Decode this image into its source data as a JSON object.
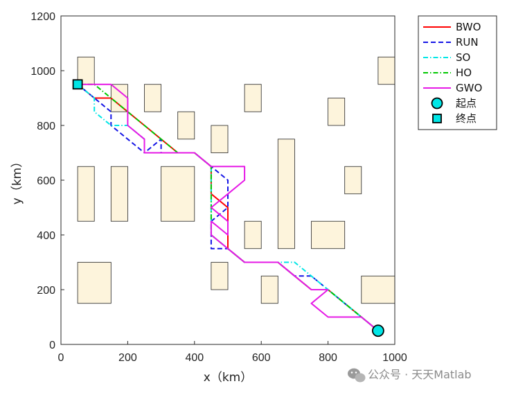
{
  "chart_data": {
    "type": "line",
    "xlabel": "x（km）",
    "ylabel": "y（km）",
    "xlim": [
      0,
      1000
    ],
    "ylim": [
      0,
      1200
    ],
    "xticks": [
      "0",
      "200",
      "400",
      "600",
      "800",
      "1000"
    ],
    "yticks": [
      "0",
      "200",
      "400",
      "600",
      "800",
      "1000",
      "1200"
    ],
    "grid": false,
    "legend_position": "top-right",
    "obstacle_color": "#fdf4dc",
    "obstacles": [
      {
        "x": 50,
        "y": 950,
        "w": 50,
        "h": 100
      },
      {
        "x": 150,
        "y": 850,
        "w": 50,
        "h": 100
      },
      {
        "x": 250,
        "y": 850,
        "w": 50,
        "h": 100
      },
      {
        "x": 350,
        "y": 750,
        "w": 50,
        "h": 100
      },
      {
        "x": 450,
        "y": 700,
        "w": 50,
        "h": 100
      },
      {
        "x": 550,
        "y": 850,
        "w": 50,
        "h": 100
      },
      {
        "x": 800,
        "y": 800,
        "w": 50,
        "h": 100
      },
      {
        "x": 950,
        "y": 950,
        "w": 50,
        "h": 100
      },
      {
        "x": 50,
        "y": 450,
        "w": 50,
        "h": 200
      },
      {
        "x": 150,
        "y": 450,
        "w": 50,
        "h": 200
      },
      {
        "x": 300,
        "y": 450,
        "w": 100,
        "h": 200
      },
      {
        "x": 650,
        "y": 350,
        "w": 50,
        "h": 400
      },
      {
        "x": 550,
        "y": 350,
        "w": 50,
        "h": 100
      },
      {
        "x": 750,
        "y": 350,
        "w": 100,
        "h": 100
      },
      {
        "x": 850,
        "y": 550,
        "w": 50,
        "h": 100
      },
      {
        "x": 50,
        "y": 150,
        "w": 100,
        "h": 150
      },
      {
        "x": 450,
        "y": 200,
        "w": 50,
        "h": 100
      },
      {
        "x": 600,
        "y": 150,
        "w": 50,
        "h": 100
      },
      {
        "x": 900,
        "y": 150,
        "w": 100,
        "h": 100
      }
    ],
    "series": [
      {
        "name": "BWO",
        "color": "#ff0000",
        "dash": "solid",
        "points": [
          [
            50,
            950
          ],
          [
            100,
            900
          ],
          [
            150,
            900
          ],
          [
            200,
            850
          ],
          [
            250,
            800
          ],
          [
            300,
            750
          ],
          [
            350,
            700
          ],
          [
            400,
            700
          ],
          [
            450,
            650
          ],
          [
            450,
            550
          ],
          [
            500,
            500
          ],
          [
            450,
            550
          ],
          [
            500,
            500
          ],
          [
            500,
            350
          ],
          [
            550,
            300
          ],
          [
            650,
            300
          ],
          [
            700,
            250
          ],
          [
            750,
            200
          ],
          [
            800,
            200
          ],
          [
            850,
            150
          ],
          [
            900,
            100
          ],
          [
            950,
            50
          ]
        ]
      },
      {
        "name": "RUN",
        "color": "#1414e6",
        "dash": "dashed",
        "points": [
          [
            50,
            950
          ],
          [
            100,
            900
          ],
          [
            150,
            850
          ],
          [
            150,
            800
          ],
          [
            200,
            750
          ],
          [
            250,
            700
          ],
          [
            300,
            700
          ],
          [
            250,
            700
          ],
          [
            300,
            750
          ],
          [
            300,
            700
          ],
          [
            400,
            700
          ],
          [
            450,
            650
          ],
          [
            500,
            600
          ],
          [
            500,
            500
          ],
          [
            450,
            450
          ],
          [
            450,
            350
          ],
          [
            500,
            350
          ],
          [
            550,
            300
          ],
          [
            650,
            300
          ],
          [
            700,
            250
          ],
          [
            750,
            250
          ],
          [
            800,
            200
          ],
          [
            850,
            150
          ],
          [
            900,
            100
          ],
          [
            950,
            50
          ]
        ]
      },
      {
        "name": "SO",
        "color": "#00e6e6",
        "dash": "dash-dot",
        "points": [
          [
            50,
            950
          ],
          [
            100,
            900
          ],
          [
            100,
            850
          ],
          [
            150,
            800
          ],
          [
            200,
            800
          ],
          [
            250,
            750
          ],
          [
            250,
            700
          ],
          [
            350,
            700
          ],
          [
            400,
            700
          ],
          [
            450,
            650
          ],
          [
            450,
            400
          ],
          [
            500,
            350
          ],
          [
            550,
            300
          ],
          [
            700,
            300
          ],
          [
            750,
            250
          ],
          [
            800,
            200
          ],
          [
            850,
            150
          ],
          [
            900,
            100
          ],
          [
            950,
            50
          ]
        ]
      },
      {
        "name": "HO",
        "color": "#00c800",
        "dash": "dash-dot",
        "points": [
          [
            50,
            950
          ],
          [
            100,
            950
          ],
          [
            150,
            900
          ],
          [
            200,
            850
          ],
          [
            250,
            800
          ],
          [
            300,
            750
          ],
          [
            350,
            700
          ],
          [
            400,
            700
          ],
          [
            450,
            650
          ],
          [
            450,
            400
          ],
          [
            500,
            350
          ],
          [
            550,
            300
          ],
          [
            650,
            300
          ],
          [
            700,
            250
          ],
          [
            750,
            200
          ],
          [
            800,
            200
          ],
          [
            850,
            150
          ],
          [
            900,
            100
          ],
          [
            950,
            50
          ]
        ]
      },
      {
        "name": "GWO",
        "color": "#e619e6",
        "dash": "solid",
        "points": [
          [
            50,
            950
          ],
          [
            150,
            950
          ],
          [
            200,
            900
          ],
          [
            200,
            800
          ],
          [
            250,
            750
          ],
          [
            250,
            700
          ],
          [
            350,
            700
          ],
          [
            400,
            700
          ],
          [
            450,
            650
          ],
          [
            550,
            650
          ],
          [
            550,
            600
          ],
          [
            500,
            550
          ],
          [
            450,
            500
          ],
          [
            500,
            450
          ],
          [
            500,
            400
          ],
          [
            450,
            450
          ],
          [
            450,
            400
          ],
          [
            500,
            350
          ],
          [
            550,
            300
          ],
          [
            650,
            300
          ],
          [
            700,
            250
          ],
          [
            750,
            200
          ],
          [
            800,
            200
          ],
          [
            750,
            150
          ],
          [
            800,
            100
          ],
          [
            900,
            100
          ],
          [
            950,
            50
          ]
        ]
      }
    ],
    "markers": [
      {
        "name": "起点",
        "shape": "circle",
        "x": 950,
        "y": 50,
        "color": "#00e6e6"
      },
      {
        "name": "终点",
        "shape": "square",
        "x": 50,
        "y": 950,
        "color": "#00e6e6"
      }
    ]
  },
  "watermark": "公众号 · 天天Matlab"
}
